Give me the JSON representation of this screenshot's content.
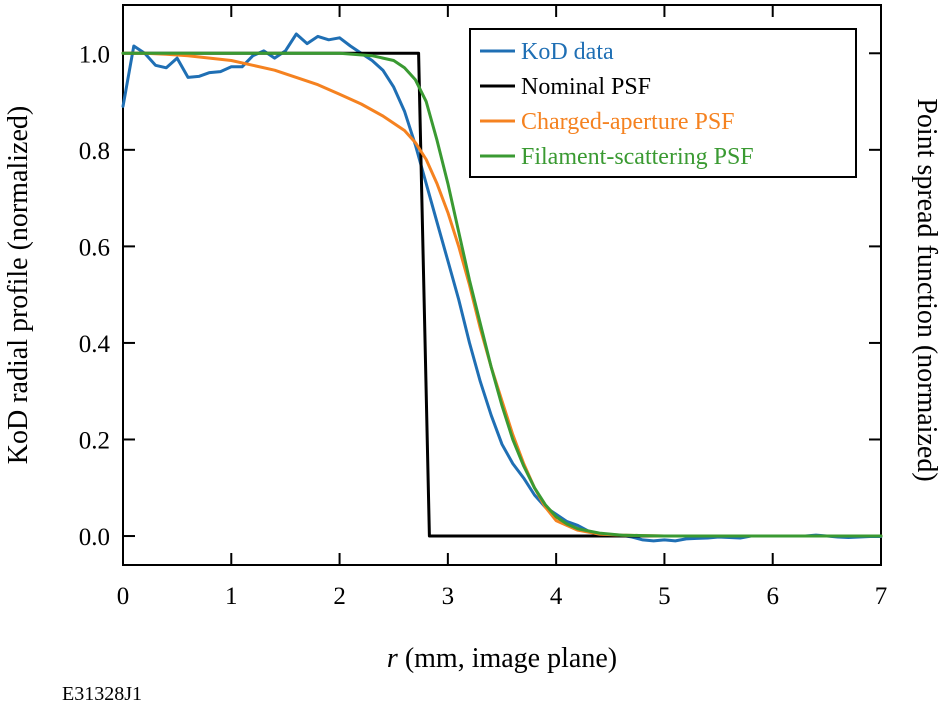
{
  "figure_id": "E31328J1",
  "chart_data": {
    "type": "line",
    "xlabel_italic": "r",
    "xlabel_rest": " (mm, image plane)",
    "ylabel_left": "KoD radial profile (normalized)",
    "ylabel_right": "Point spread function (normaized)",
    "xlim": [
      0,
      7
    ],
    "ylim": [
      -0.06,
      1.1
    ],
    "xticks": [
      0,
      1,
      2,
      3,
      4,
      5,
      6,
      7
    ],
    "xtick_labels": [
      "0",
      "1",
      "2",
      "3",
      "4",
      "5",
      "6",
      "7"
    ],
    "yticks": [
      0.0,
      0.2,
      0.4,
      0.6,
      0.8,
      1.0
    ],
    "ytick_labels": [
      "0.0",
      "0.2",
      "0.4",
      "0.6",
      "0.8",
      "1.0"
    ],
    "grid": false,
    "legend_position": "top-right",
    "series": [
      {
        "name": "KoD data",
        "color": "#1f6fb4",
        "x": [
          0.0,
          0.1,
          0.2,
          0.3,
          0.4,
          0.5,
          0.6,
          0.7,
          0.8,
          0.9,
          1.0,
          1.1,
          1.2,
          1.3,
          1.4,
          1.5,
          1.6,
          1.7,
          1.8,
          1.9,
          2.0,
          2.1,
          2.2,
          2.3,
          2.4,
          2.5,
          2.6,
          2.7,
          2.8,
          2.9,
          3.0,
          3.1,
          3.2,
          3.3,
          3.4,
          3.5,
          3.6,
          3.7,
          3.8,
          3.9,
          4.0,
          4.1,
          4.2,
          4.3,
          4.4,
          4.5,
          4.6,
          4.7,
          4.8,
          4.9,
          5.0,
          5.1,
          5.2,
          5.3,
          5.4,
          5.5,
          5.6,
          5.7,
          5.8,
          5.9,
          6.0,
          6.1,
          6.2,
          6.3,
          6.4,
          6.5,
          6.6,
          6.7,
          6.8,
          6.9,
          7.0
        ],
        "y": [
          0.89,
          1.015,
          1.0,
          0.975,
          0.97,
          0.99,
          0.95,
          0.952,
          0.96,
          0.962,
          0.972,
          0.972,
          0.995,
          1.005,
          0.99,
          1.005,
          1.04,
          1.02,
          1.035,
          1.028,
          1.032,
          1.015,
          1.0,
          0.985,
          0.965,
          0.93,
          0.88,
          0.81,
          0.73,
          0.65,
          0.57,
          0.49,
          0.4,
          0.32,
          0.25,
          0.19,
          0.15,
          0.12,
          0.085,
          0.06,
          0.045,
          0.03,
          0.022,
          0.01,
          0.004,
          0.002,
          0.002,
          -0.002,
          -0.008,
          -0.01,
          -0.008,
          -0.01,
          -0.006,
          -0.005,
          -0.004,
          -0.002,
          -0.003,
          -0.004,
          0.0,
          0.0,
          0.0,
          0.0,
          0.0,
          0.0,
          0.002,
          0.0,
          -0.002,
          -0.003,
          -0.002,
          -0.001,
          -0.001
        ]
      },
      {
        "name": "Nominal PSF",
        "color": "#000000",
        "x": [
          0.0,
          2.73,
          2.83,
          7.0
        ],
        "y": [
          1.0,
          1.0,
          0.0,
          0.0
        ]
      },
      {
        "name": "Charged-aperture PSF",
        "color": "#f58220",
        "x": [
          0.0,
          0.2,
          0.4,
          0.6,
          0.8,
          1.0,
          1.2,
          1.4,
          1.6,
          1.8,
          2.0,
          2.2,
          2.4,
          2.6,
          2.7,
          2.8,
          2.9,
          3.0,
          3.1,
          3.2,
          3.3,
          3.4,
          3.5,
          3.6,
          3.7,
          3.8,
          3.9,
          4.0,
          4.2,
          4.4,
          4.6,
          4.8,
          5.0,
          5.5,
          6.0,
          7.0
        ],
        "y": [
          1.0,
          1.0,
          0.998,
          0.995,
          0.99,
          0.985,
          0.975,
          0.965,
          0.95,
          0.935,
          0.915,
          0.895,
          0.87,
          0.84,
          0.815,
          0.78,
          0.73,
          0.67,
          0.6,
          0.52,
          0.43,
          0.35,
          0.28,
          0.21,
          0.15,
          0.1,
          0.06,
          0.032,
          0.012,
          0.004,
          0.002,
          0.001,
          0.0,
          0.0,
          0.0,
          0.0
        ]
      },
      {
        "name": "Filament-scattering PSF",
        "color": "#3a9a32",
        "x": [
          0.0,
          1.0,
          2.0,
          2.3,
          2.5,
          2.6,
          2.7,
          2.8,
          2.9,
          3.0,
          3.1,
          3.2,
          3.3,
          3.4,
          3.5,
          3.6,
          3.7,
          3.8,
          3.9,
          4.0,
          4.1,
          4.2,
          4.4,
          4.6,
          4.8,
          5.0,
          6.0,
          7.0
        ],
        "y": [
          1.0,
          1.0,
          1.0,
          0.995,
          0.985,
          0.97,
          0.945,
          0.9,
          0.82,
          0.73,
          0.63,
          0.53,
          0.44,
          0.35,
          0.27,
          0.2,
          0.145,
          0.1,
          0.065,
          0.04,
          0.025,
          0.015,
          0.006,
          0.002,
          0.001,
          0.0,
          0.0,
          0.0
        ]
      }
    ]
  }
}
